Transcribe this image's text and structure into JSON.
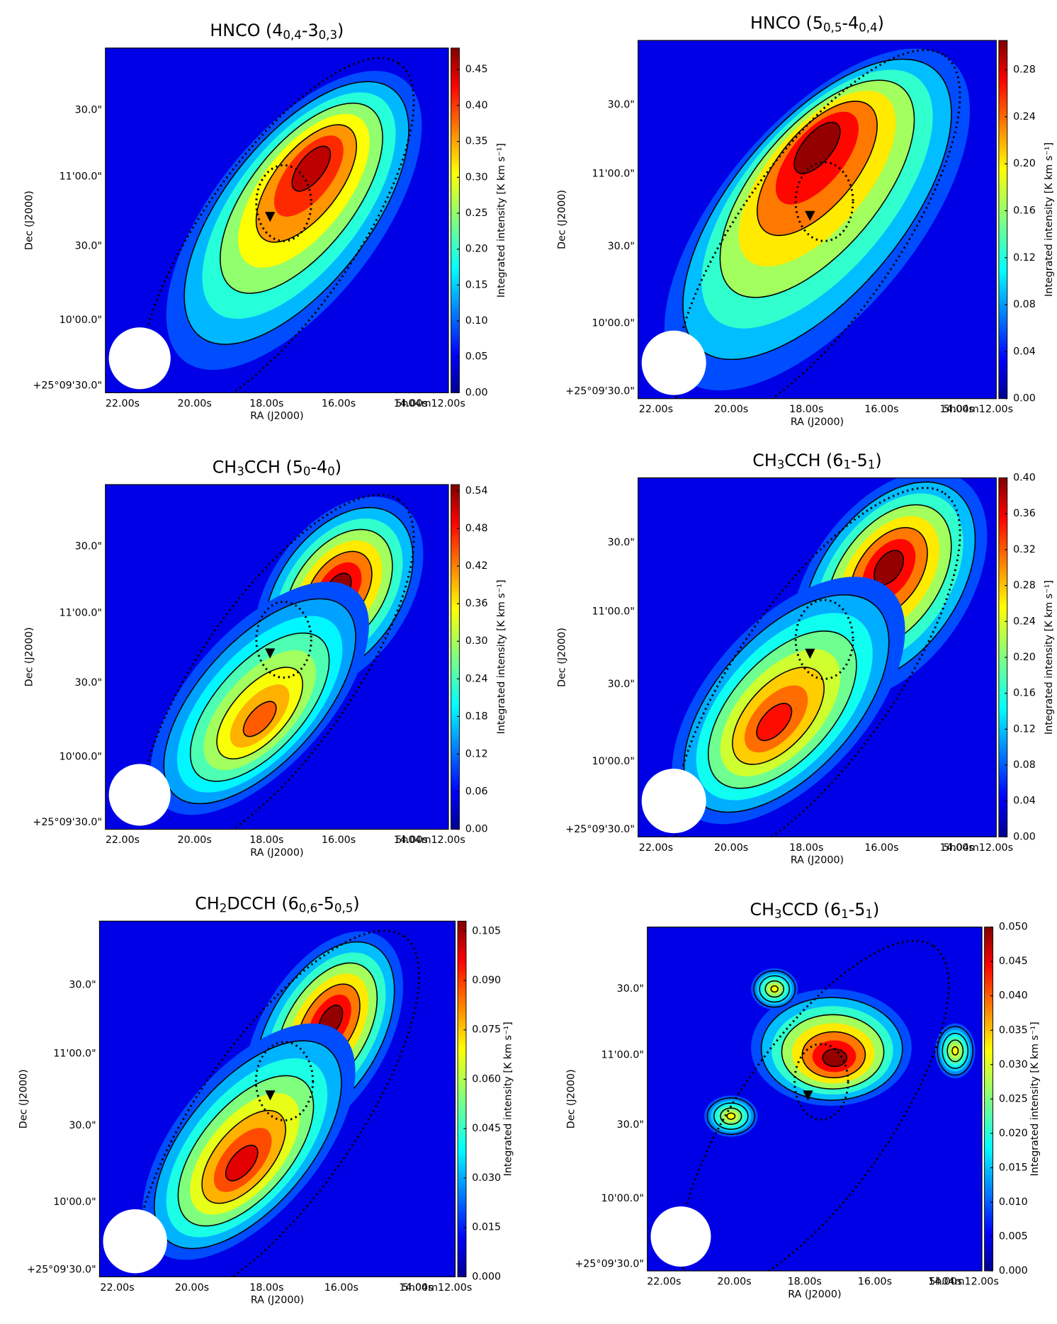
{
  "chart_data": [
    {
      "type": "heatmap",
      "title": [
        "HNCO (4",
        "0,4",
        "-3",
        "0,3",
        ")"
      ],
      "xlabel": "RA (J2000)",
      "ylabel": "Dec (J2000)",
      "colorbar_label": "Integrated intensity [K km s⁻¹]",
      "colormap": "jet",
      "xticks": [
        "22.00s",
        "20.00s",
        "18.00s",
        "16.00s",
        "14.00s",
        "5h04m12.00s"
      ],
      "yticks": [
        "+25°09'30.0\"",
        "10'00.0\"",
        "30.0\"",
        "11'00.0\"",
        "30.0\""
      ],
      "clim": [
        0,
        0.48
      ],
      "cticks": [
        {
          "value": 0,
          "label": "0.00"
        },
        0.05,
        {
          "value": 0.1,
          "label": "0.10"
        },
        0.15,
        {
          "value": 0.2,
          "label": "0.20"
        },
        0.25,
        {
          "value": 0.3,
          "label": "0.30"
        },
        0.35,
        {
          "value": 0.4,
          "label": "0.40"
        },
        0.45
      ]
    },
    {
      "type": "heatmap",
      "title": [
        "HNCO (5",
        "0,5",
        "-4",
        "0,4",
        ")"
      ],
      "xlabel": "RA (J2000)",
      "ylabel": "Dec (J2000)",
      "colorbar_label": "Integrated intensity [K km s⁻¹]",
      "colormap": "jet",
      "xticks": [
        "22.00s",
        "20.00s",
        "18.00s",
        "16.00s",
        "14.00s",
        "5h04m12.00s"
      ],
      "yticks": [
        "+25°09'30.0\"",
        "10'00.0\"",
        "30.0\"",
        "11'00.0\"",
        "30.0\""
      ],
      "clim": [
        0,
        0.305
      ],
      "cticks": [
        {
          "value": 0,
          "label": "0.00"
        },
        0.04,
        0.08,
        0.12,
        0.16,
        {
          "value": 0.2,
          "label": "0.20"
        },
        0.24,
        0.28
      ]
    },
    {
      "type": "heatmap",
      "title": [
        "CH",
        "3",
        "CCH (5",
        "0",
        "-4",
        "0",
        ")"
      ],
      "xlabel": "RA (J2000)",
      "ylabel": "Dec (J2000)",
      "colorbar_label": "Integrated intensity [K km s⁻¹]",
      "colormap": "jet",
      "xticks": [
        "22.00s",
        "20.00s",
        "18.00s",
        "16.00s",
        "14.00s",
        "5h04m12.00s"
      ],
      "yticks": [
        "+25°09'30.0\"",
        "10'00.0\"",
        "30.0\"",
        "11'00.0\"",
        "30.0\""
      ],
      "clim": [
        0,
        0.55
      ],
      "cticks": [
        {
          "value": 0,
          "label": "0.00"
        },
        0.06,
        0.12,
        0.18,
        0.24,
        {
          "value": 0.3,
          "label": "0.30"
        },
        0.36,
        0.42,
        0.48,
        0.54
      ]
    },
    {
      "type": "heatmap",
      "title": [
        "CH",
        "3",
        "CCH (6",
        "1",
        "-5",
        "1",
        ")"
      ],
      "xlabel": "RA (J2000)",
      "ylabel": "Dec (J2000)",
      "colorbar_label": "Integrated intensity [K km s⁻¹]",
      "colormap": "jet",
      "xticks": [
        "22.00s",
        "20.00s",
        "18.00s",
        "16.00s",
        "14.00s",
        "5h04m12.00s"
      ],
      "yticks": [
        "+25°09'30.0\"",
        "10'00.0\"",
        "30.0\"",
        "11'00.0\"",
        "30.0\""
      ],
      "clim": [
        0,
        0.4
      ],
      "cticks": [
        {
          "value": 0,
          "label": "0.00"
        },
        0.04,
        0.08,
        0.12,
        0.16,
        {
          "value": 0.2,
          "label": "0.20"
        },
        0.24,
        0.28,
        0.32,
        0.36,
        {
          "value": 0.4,
          "label": "0.40"
        }
      ]
    },
    {
      "type": "heatmap",
      "title": [
        "CH",
        "2",
        "DCCH (6",
        "0,6",
        "-5",
        "0,5",
        ")"
      ],
      "xlabel": "RA (J2000)",
      "ylabel": "Dec (J2000)",
      "colorbar_label": "Integrated intensity [K km s⁻¹]",
      "colormap": "jet",
      "xticks": [
        "22.00s",
        "20.00s",
        "18.00s",
        "16.00s",
        "14.00s",
        "5h04m12.00s"
      ],
      "yticks": [
        "+25°09'30.0\"",
        "10'00.0\"",
        "30.0\"",
        "11'00.0\"",
        "30.0\""
      ],
      "clim": [
        0,
        0.108
      ],
      "cticks": [
        {
          "value": 0,
          "label": "0.000"
        },
        0.015,
        {
          "value": 0.03,
          "label": "0.030"
        },
        0.045,
        {
          "value": 0.06,
          "label": "0.060"
        },
        0.075,
        {
          "value": 0.09,
          "label": "0.090"
        },
        0.105
      ]
    },
    {
      "type": "heatmap",
      "title": [
        "CH",
        "3",
        "CCD (6",
        "1",
        "-5",
        "1",
        ")"
      ],
      "xlabel": "RA (J2000)",
      "ylabel": "Dec (J2000)",
      "colorbar_label": "Integrated intensity [K km s⁻¹]",
      "colormap": "jet",
      "xticks": [
        "22.00s",
        "20.00s",
        "18.00s",
        "16.00s",
        "14.00s",
        "5h04m12.00s"
      ],
      "yticks": [
        "+25°09'30.0\"",
        "10'00.0\"",
        "30.0\"",
        "11'00.0\"",
        "30.0\""
      ],
      "clim": [
        0,
        0.05
      ],
      "cticks": [
        {
          "value": 0,
          "label": "0.000"
        },
        0.005,
        {
          "value": 0.01,
          "label": "0.010"
        },
        0.015,
        {
          "value": 0.02,
          "label": "0.020"
        },
        0.025,
        {
          "value": 0.03,
          "label": "0.030"
        },
        0.035,
        {
          "value": 0.04,
          "label": "0.040"
        },
        0.045,
        {
          "value": 0.05,
          "label": "0.050"
        }
      ]
    }
  ]
}
